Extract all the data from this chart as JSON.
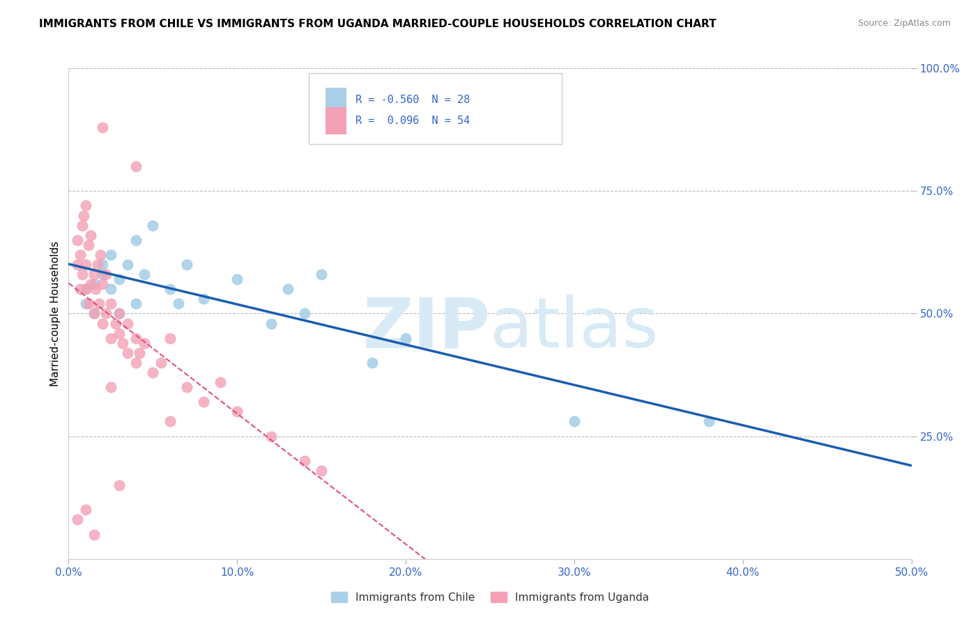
{
  "title": "IMMIGRANTS FROM CHILE VS IMMIGRANTS FROM UGANDA MARRIED-COUPLE HOUSEHOLDS CORRELATION CHART",
  "source": "Source: ZipAtlas.com",
  "xlabel_chile": "Immigrants from Chile",
  "xlabel_uganda": "Immigrants from Uganda",
  "ylabel": "Married-couple Households",
  "xlim": [
    0.0,
    0.5
  ],
  "ylim": [
    0.0,
    1.0
  ],
  "xticks": [
    0.0,
    0.1,
    0.2,
    0.3,
    0.4,
    0.5
  ],
  "xtick_labels": [
    "0.0%",
    "10.0%",
    "20.0%",
    "30.0%",
    "40.0%",
    "50.0%"
  ],
  "yticks": [
    0.25,
    0.5,
    0.75,
    1.0
  ],
  "ytick_labels": [
    "25.0%",
    "50.0%",
    "75.0%",
    "100.0%"
  ],
  "r_chile": -0.56,
  "n_chile": 28,
  "r_uganda": 0.096,
  "n_uganda": 54,
  "color_chile": "#A8D0E8",
  "color_uganda": "#F4A0B5",
  "trend_color_chile": "#1A5DAF",
  "trend_color_uganda": "#E05080",
  "watermark_color": "#D8EAF5",
  "chile_x": [
    0.01,
    0.01,
    0.015,
    0.015,
    0.02,
    0.02,
    0.025,
    0.025,
    0.03,
    0.03,
    0.035,
    0.04,
    0.04,
    0.045,
    0.05,
    0.06,
    0.065,
    0.07,
    0.08,
    0.1,
    0.12,
    0.13,
    0.14,
    0.15,
    0.18,
    0.2,
    0.3,
    0.38
  ],
  "chile_y": [
    0.52,
    0.55,
    0.5,
    0.56,
    0.58,
    0.6,
    0.55,
    0.62,
    0.5,
    0.57,
    0.6,
    0.52,
    0.65,
    0.58,
    0.68,
    0.55,
    0.52,
    0.6,
    0.53,
    0.57,
    0.48,
    0.55,
    0.5,
    0.58,
    0.4,
    0.45,
    0.28,
    0.28
  ],
  "uganda_x": [
    0.005,
    0.005,
    0.007,
    0.007,
    0.008,
    0.008,
    0.009,
    0.01,
    0.01,
    0.01,
    0.012,
    0.012,
    0.013,
    0.013,
    0.015,
    0.015,
    0.016,
    0.017,
    0.018,
    0.019,
    0.02,
    0.02,
    0.022,
    0.022,
    0.025,
    0.025,
    0.028,
    0.03,
    0.03,
    0.032,
    0.035,
    0.035,
    0.04,
    0.04,
    0.042,
    0.045,
    0.05,
    0.055,
    0.06,
    0.07,
    0.08,
    0.09,
    0.1,
    0.12,
    0.14,
    0.15,
    0.02,
    0.04,
    0.06,
    0.01,
    0.005,
    0.015,
    0.03,
    0.025
  ],
  "uganda_y": [
    0.6,
    0.65,
    0.55,
    0.62,
    0.58,
    0.68,
    0.7,
    0.55,
    0.6,
    0.72,
    0.52,
    0.64,
    0.56,
    0.66,
    0.5,
    0.58,
    0.55,
    0.6,
    0.52,
    0.62,
    0.48,
    0.56,
    0.5,
    0.58,
    0.45,
    0.52,
    0.48,
    0.46,
    0.5,
    0.44,
    0.42,
    0.48,
    0.45,
    0.4,
    0.42,
    0.44,
    0.38,
    0.4,
    0.45,
    0.35,
    0.32,
    0.36,
    0.3,
    0.25,
    0.2,
    0.18,
    0.88,
    0.8,
    0.28,
    0.1,
    0.08,
    0.05,
    0.15,
    0.35
  ]
}
